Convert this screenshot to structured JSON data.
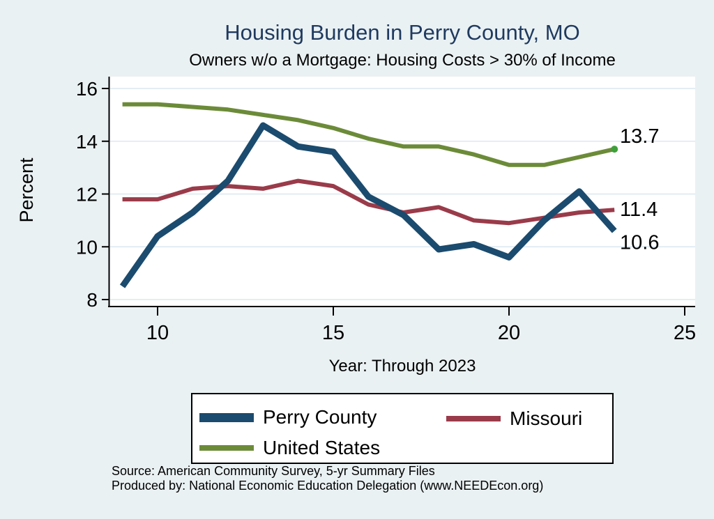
{
  "header": {
    "title": "Housing Burden in Perry County, MO",
    "subtitle": "Owners w/o a Mortgage: Housing Costs > 30% of Income"
  },
  "chart_data": {
    "type": "line",
    "title": "Housing Burden in Perry County, MO",
    "subtitle": "Owners w/o a Mortgage: Housing Costs > 30% of Income",
    "xlabel": "Year: Through 2023",
    "ylabel": "Percent",
    "x": [
      9,
      10,
      11,
      12,
      13,
      14,
      15,
      16,
      17,
      18,
      19,
      20,
      21,
      22,
      23
    ],
    "x_ticks": [
      10,
      15,
      20,
      25
    ],
    "y_ticks": [
      8,
      10,
      12,
      14,
      16
    ],
    "xlim": [
      8.6,
      25.3
    ],
    "ylim": [
      7.7,
      16.4
    ],
    "grid": true,
    "legend_position": "bottom",
    "plot_bg": "#ffffff",
    "grid_color": "#dbe8f0",
    "axis_color": "#000000",
    "series": [
      {
        "name": "Perry County",
        "color": "#1b4b6e",
        "width": 9,
        "end_label": "10.6",
        "values": [
          8.5,
          10.4,
          11.3,
          12.5,
          14.6,
          13.8,
          13.6,
          11.9,
          11.2,
          9.9,
          10.1,
          9.6,
          11.0,
          12.1,
          10.6
        ]
      },
      {
        "name": "Missouri",
        "color": "#9a3b4a",
        "width": 6,
        "end_label": "11.4",
        "values": [
          11.8,
          11.8,
          12.2,
          12.3,
          12.2,
          12.5,
          12.3,
          11.6,
          11.3,
          11.5,
          11.0,
          10.9,
          11.1,
          11.3,
          11.4
        ]
      },
      {
        "name": "United States",
        "color": "#6c8b39",
        "width": 6,
        "end_label": "13.7",
        "end_marker_color": "#3fa039",
        "values": [
          15.4,
          15.4,
          15.3,
          15.2,
          15.0,
          14.8,
          14.5,
          14.1,
          13.8,
          13.8,
          13.5,
          13.1,
          13.1,
          13.4,
          13.7
        ]
      }
    ]
  },
  "legend": {
    "items": [
      {
        "label": "Perry County"
      },
      {
        "label": "Missouri"
      },
      {
        "label": "United States"
      }
    ]
  },
  "footer": {
    "source": "Source: American Community Survey, 5-yr Summary Files",
    "produced_by": "Produced by: National Economic Education Delegation (www.NEEDEcon.org)"
  },
  "colors": {
    "background": "#eaf1f3",
    "title": "#1f3a5f",
    "text": "#000000"
  }
}
